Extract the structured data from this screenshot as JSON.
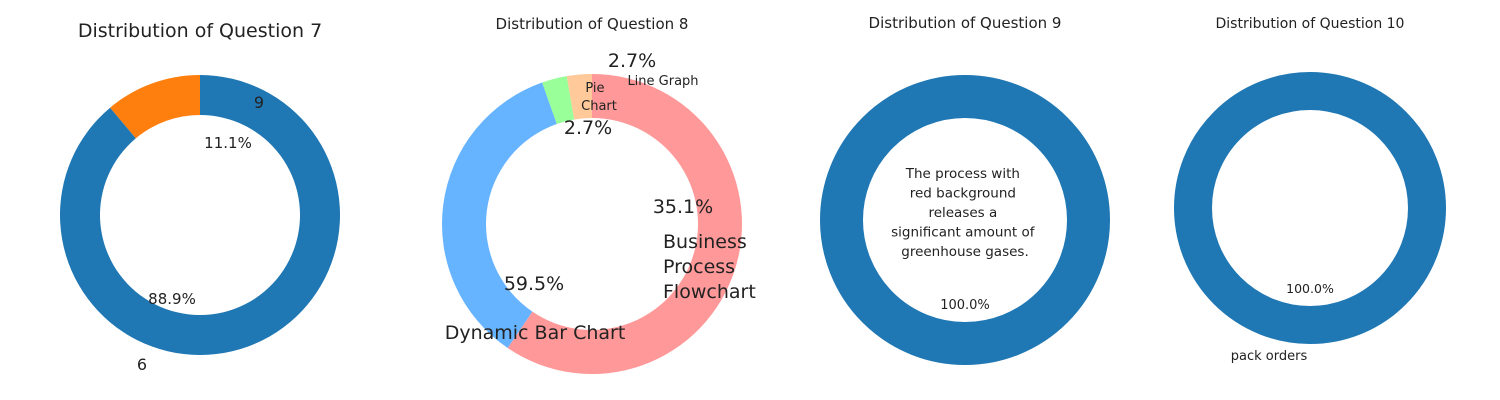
{
  "chart_data": [
    {
      "type": "pie",
      "title": "Distribution of Question 7",
      "donut": true,
      "slices": [
        {
          "label": "9",
          "value": 11.1,
          "pct_label": "11.1%",
          "color": "#ff7f0e"
        },
        {
          "label": "6",
          "value": 88.9,
          "pct_label": "88.9%",
          "color": "#1f77b4"
        }
      ]
    },
    {
      "type": "pie",
      "title": "Distribution of Question 8",
      "donut": true,
      "slices": [
        {
          "label": "Pie Chart",
          "value": 2.7,
          "pct_label": "2.7%",
          "color": "#ffc999"
        },
        {
          "label": "Line Graph",
          "value": 2.7,
          "pct_label": "2.7%",
          "color": "#99ff99"
        },
        {
          "label": "Business Process Flowchart",
          "value": 35.1,
          "pct_label": "35.1%",
          "color": "#66b3ff"
        },
        {
          "label": "Dynamic Bar Chart",
          "value": 59.5,
          "pct_label": "59.5%",
          "color": "#ff9999"
        }
      ]
    },
    {
      "type": "pie",
      "title": "Distribution of Question 9",
      "donut": true,
      "slices": [
        {
          "label": "The process with red background releases a significant amount of greenhouse gases.",
          "value": 100.0,
          "pct_label": "100.0%",
          "color": "#1f77b4"
        }
      ]
    },
    {
      "type": "pie",
      "title": "Distribution of Question 10",
      "donut": true,
      "slices": [
        {
          "label": "pack orders",
          "value": 100.0,
          "pct_label": "100.0%",
          "color": "#1f77b4"
        }
      ]
    }
  ]
}
